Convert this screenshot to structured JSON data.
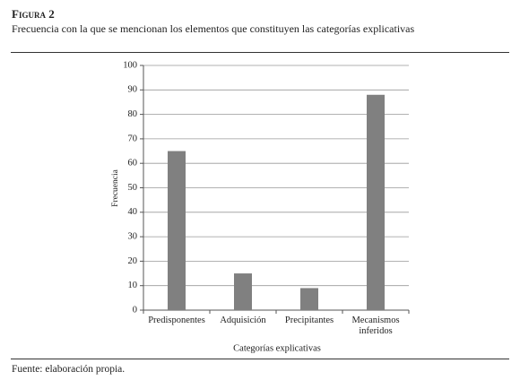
{
  "header": {
    "title": "Figura 2",
    "subtitle": "Frecuencia con la que se mencionan los elementos que constituyen las categorías explicativas"
  },
  "chart_data": {
    "type": "bar",
    "xlabel": "Categorías explicativas",
    "ylabel": "Frecuencia",
    "categories": [
      "Predisponentes",
      "Adquisición",
      "Precipitantes",
      "Mecanismos inferidos"
    ],
    "values": [
      65,
      15,
      9,
      88
    ],
    "color": "#808080",
    "ylim": [
      0,
      100
    ],
    "yticks": [
      0,
      10,
      20,
      30,
      40,
      50,
      60,
      70,
      80,
      90,
      100
    ],
    "grid": true
  },
  "footer": {
    "source": "Fuente: elaboración propia."
  }
}
